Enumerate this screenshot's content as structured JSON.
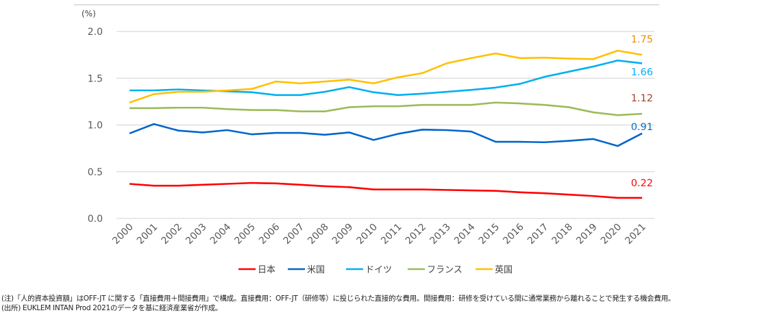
{
  "chart_data": {
    "type": "line",
    "ylabel": "(%)",
    "ylim": [
      0,
      2.0
    ],
    "yticks": [
      "0.0",
      "0.5",
      "1.0",
      "1.5",
      "2.0"
    ],
    "grid": true,
    "legend_placement": "bottom",
    "x": [
      "2000",
      "2001",
      "2002",
      "2003",
      "2004",
      "2005",
      "2006",
      "2007",
      "2008",
      "2009",
      "2010",
      "2011",
      "2012",
      "2013",
      "2014",
      "2015",
      "2016",
      "2017",
      "2018",
      "2019",
      "2020",
      "2021"
    ],
    "series": [
      {
        "name": "日本",
        "color": "#ff0000",
        "label_color": "#ff0000",
        "end_label": "0.22",
        "values": [
          0.37,
          0.35,
          0.35,
          0.36,
          0.37,
          0.38,
          0.375,
          0.36,
          0.345,
          0.335,
          0.31,
          0.31,
          0.31,
          0.305,
          0.3,
          0.295,
          0.28,
          0.27,
          0.255,
          0.24,
          0.22,
          0.22
        ]
      },
      {
        "name": "米国",
        "color": "#0066cc",
        "label_color": "#0070c0",
        "end_label": "0.91",
        "values": [
          0.91,
          1.01,
          0.94,
          0.92,
          0.945,
          0.9,
          0.915,
          0.915,
          0.895,
          0.92,
          0.84,
          0.905,
          0.95,
          0.945,
          0.93,
          0.82,
          0.82,
          0.815,
          0.83,
          0.85,
          0.775,
          0.91
        ]
      },
      {
        "name": "ドイツ",
        "color": "#00b0f0",
        "label_color": "#00b0f0",
        "end_label": "1.66",
        "values": [
          1.37,
          1.37,
          1.38,
          1.37,
          1.36,
          1.35,
          1.32,
          1.32,
          1.355,
          1.405,
          1.35,
          1.32,
          1.335,
          1.355,
          1.375,
          1.4,
          1.44,
          1.515,
          1.57,
          1.625,
          1.69,
          1.66
        ]
      },
      {
        "name": "フランス",
        "color": "#9bbb59",
        "label_color": "#a0422a",
        "end_label": "1.12",
        "values": [
          1.18,
          1.18,
          1.185,
          1.185,
          1.17,
          1.16,
          1.16,
          1.145,
          1.145,
          1.19,
          1.2,
          1.2,
          1.215,
          1.215,
          1.215,
          1.24,
          1.23,
          1.215,
          1.19,
          1.135,
          1.105,
          1.12
        ]
      },
      {
        "name": "英国",
        "color": "#ffc000",
        "label_color": "#f08c00",
        "end_label": "1.75",
        "values": [
          1.24,
          1.33,
          1.355,
          1.355,
          1.37,
          1.385,
          1.465,
          1.445,
          1.465,
          1.485,
          1.445,
          1.51,
          1.555,
          1.66,
          1.715,
          1.765,
          1.715,
          1.72,
          1.71,
          1.705,
          1.795,
          1.75
        ]
      }
    ]
  },
  "notes": {
    "line1": "(注)「人的資本投資額」はOFF-JT に関する「直接費用＋間接費用」で構成。直接費用：OFF-JT（研修等）に投じられた直接的な費用。間接費用：研修を受けている間に通常業務から離れることで発生する機会費用。",
    "line2": "(出所) EUKLEM INTAN Prod 2021のデータを基に経済産業省が作成。"
  }
}
